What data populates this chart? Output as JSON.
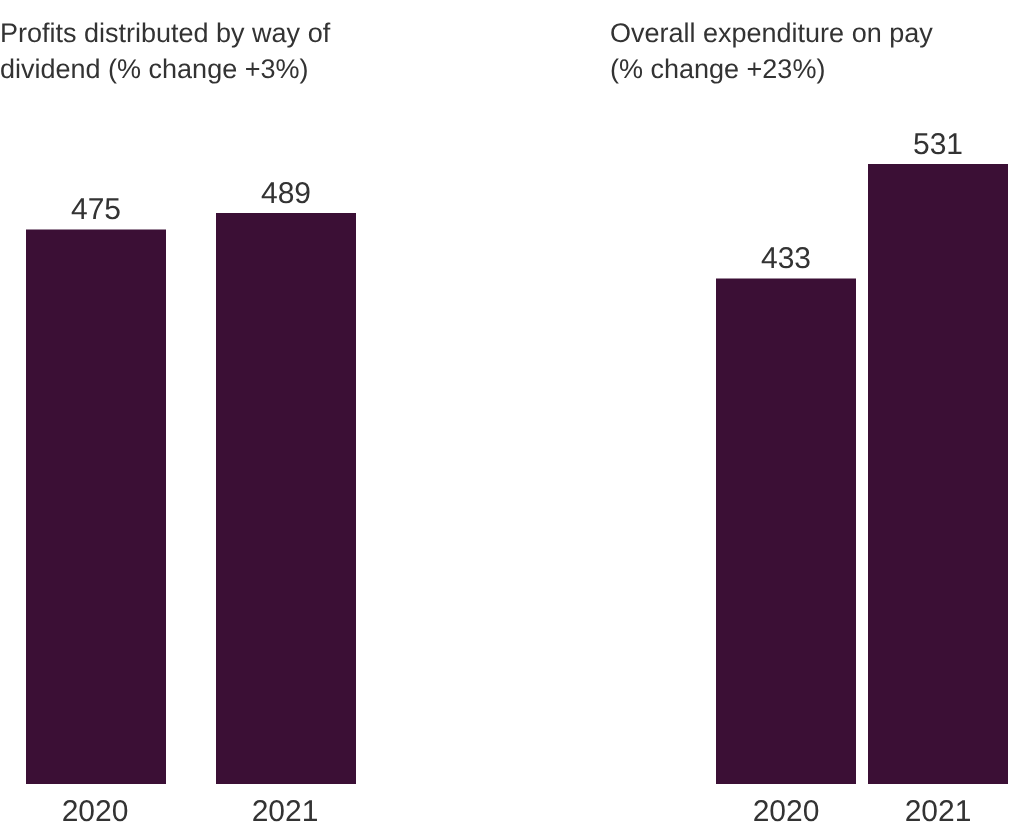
{
  "chart_data": [
    {
      "type": "bar",
      "title": "Profits distributed by way of dividend (% change +3%)",
      "categories": [
        "2020",
        "2021"
      ],
      "values": [
        475,
        489
      ],
      "color": "#3b0f35",
      "data_labels": true
    },
    {
      "type": "bar",
      "title": "Overall expenditure on pay (% change +23%)",
      "categories": [
        "2020",
        "2021"
      ],
      "values": [
        433,
        531
      ],
      "color": "#3b0f35",
      "data_labels": true
    }
  ]
}
